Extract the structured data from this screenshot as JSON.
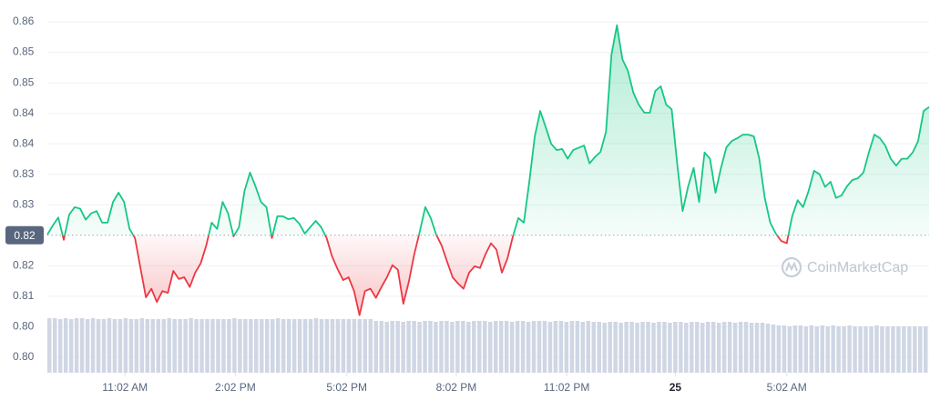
{
  "chart_data": {
    "type": "line",
    "series": [
      {
        "name": "price",
        "color": "#16c784",
        "below_color": "#ea3943",
        "values": [
          0.8205,
          0.8221,
          0.8235,
          0.8196,
          0.824,
          0.8253,
          0.825,
          0.8231,
          0.8242,
          0.8246,
          0.8226,
          0.8226,
          0.8262,
          0.8278,
          0.8262,
          0.8215,
          0.8199,
          0.8147,
          0.8096,
          0.8111,
          0.8088,
          0.8107,
          0.8104,
          0.8142,
          0.8128,
          0.8131,
          0.8114,
          0.8139,
          0.8155,
          0.8186,
          0.8226,
          0.8215,
          0.8262,
          0.8242,
          0.8202,
          0.8218,
          0.8281,
          0.8313,
          0.8289,
          0.8262,
          0.8253,
          0.8199,
          0.8237,
          0.8237,
          0.8232,
          0.8234,
          0.8224,
          0.8207,
          0.8218,
          0.8229,
          0.8218,
          0.8199,
          0.8167,
          0.8145,
          0.8126,
          0.8131,
          0.8107,
          0.8065,
          0.8107,
          0.8111,
          0.8095,
          0.8114,
          0.8131,
          0.8152,
          0.8144,
          0.8085,
          0.8123,
          0.8171,
          0.821,
          0.8253,
          0.8234,
          0.8205,
          0.8186,
          0.8158,
          0.8131,
          0.812,
          0.8111,
          0.8139,
          0.815,
          0.8147,
          0.8171,
          0.819,
          0.8179,
          0.8139,
          0.8163,
          0.8202,
          0.8234,
          0.8226,
          0.8297,
          0.8376,
          0.842,
          0.8392,
          0.8363,
          0.8352,
          0.8354,
          0.8337,
          0.8352,
          0.8356,
          0.836,
          0.8329,
          0.834,
          0.8349,
          0.8384,
          0.8518,
          0.8569,
          0.851,
          0.849,
          0.8452,
          0.8431,
          0.8417,
          0.8417,
          0.8455,
          0.8463,
          0.8431,
          0.8423,
          0.8329,
          0.8246,
          0.8289,
          0.8321,
          0.8262,
          0.8348,
          0.8337,
          0.8278,
          0.8321,
          0.8357,
          0.8368,
          0.8373,
          0.8379,
          0.8379,
          0.8376,
          0.8337,
          0.8269,
          0.8226,
          0.8207,
          0.8194,
          0.819,
          0.8237,
          0.8265,
          0.8253,
          0.8281,
          0.8316,
          0.831,
          0.8288,
          0.8297,
          0.8269,
          0.8273,
          0.8289,
          0.83,
          0.8303,
          0.8313,
          0.8348,
          0.8379,
          0.8373,
          0.836,
          0.8337,
          0.8325,
          0.8337,
          0.8337,
          0.8348,
          0.8368,
          0.842,
          0.8427
        ]
      }
    ],
    "volume": {
      "name": "volume",
      "color": "#cfd6e4",
      "ylim": [
        0,
        60
      ],
      "values": [
        60,
        60,
        59,
        60,
        59,
        60,
        60,
        59,
        60,
        59,
        59,
        60,
        59,
        59,
        60,
        59,
        59,
        60,
        59,
        59,
        59,
        59,
        60,
        59,
        59,
        59,
        60,
        59,
        59,
        59,
        59,
        59,
        59,
        59,
        60,
        59,
        59,
        59,
        59,
        59,
        59,
        59,
        60,
        59,
        59,
        59,
        59,
        59,
        59,
        60,
        59,
        59,
        59,
        59,
        59,
        59,
        59,
        59,
        59,
        59,
        57,
        57,
        56,
        57,
        57,
        56,
        57,
        57,
        56,
        57,
        57,
        56,
        57,
        57,
        56,
        57,
        57,
        56,
        57,
        57,
        57,
        56,
        57,
        57,
        57,
        56,
        57,
        57,
        56,
        57,
        57,
        57,
        56,
        57,
        57,
        56,
        57,
        57,
        56,
        57,
        56,
        56,
        55,
        56,
        56,
        55,
        56,
        56,
        55,
        56,
        56,
        55,
        56,
        56,
        55,
        56,
        56,
        55,
        56,
        56,
        55,
        56,
        56,
        55,
        56,
        56,
        55,
        56,
        56,
        55,
        55,
        55,
        54,
        53,
        52,
        52,
        51,
        52,
        52,
        51,
        52,
        51,
        52,
        51,
        52,
        51,
        51,
        52,
        51,
        51,
        51,
        51,
        52,
        51,
        51,
        51,
        51,
        51,
        51,
        51,
        51,
        51
      ]
    },
    "baseline": {
      "value": 0.8204,
      "label": "0.82"
    },
    "xlim": [
      0,
      161
    ],
    "xticks": [
      {
        "value": 14.17,
        "label": "11:02 AM"
      },
      {
        "value": 34.33,
        "label": "2:02 PM"
      },
      {
        "value": 54.67,
        "label": "5:02 PM"
      },
      {
        "value": 74.67,
        "label": "8:02 PM"
      },
      {
        "value": 94.83,
        "label": "11:02 PM"
      },
      {
        "value": 114.67,
        "label": "25",
        "bold": true
      },
      {
        "value": 135,
        "label": "5:02 AM"
      }
    ],
    "ylim": [
      0.7965,
      0.8613
    ],
    "yticks": [
      {
        "value": 0.8575,
        "label": "0.86"
      },
      {
        "value": 0.8522,
        "label": "0.85"
      },
      {
        "value": 0.8469,
        "label": "0.85"
      },
      {
        "value": 0.8416,
        "label": "0.84"
      },
      {
        "value": 0.8363,
        "label": "0.84"
      },
      {
        "value": 0.831,
        "label": "0.83"
      },
      {
        "value": 0.8257,
        "label": "0.83"
      },
      {
        "value": 0.8151,
        "label": "0.82"
      },
      {
        "value": 0.8098,
        "label": "0.81"
      },
      {
        "value": 0.8045,
        "label": "0.80"
      },
      {
        "value": 0.7992,
        "label": "0.80"
      }
    ],
    "grid": true,
    "watermark": "CoinMarketCap"
  }
}
